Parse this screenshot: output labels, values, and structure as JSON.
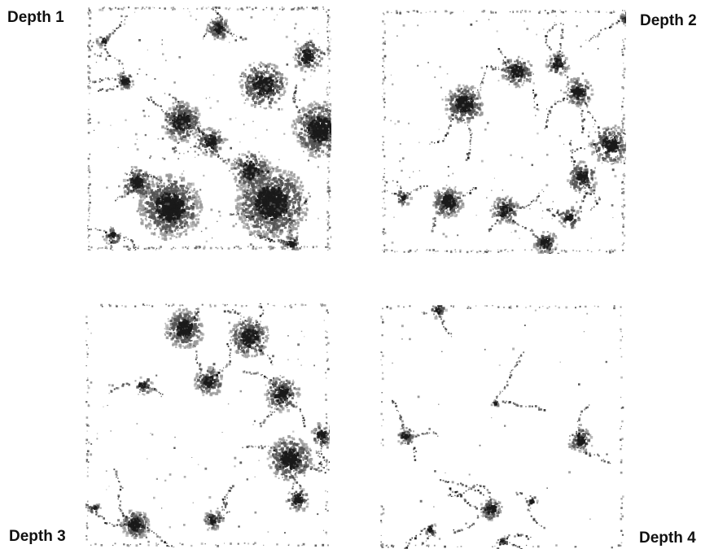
{
  "figure": {
    "panels": [
      {
        "label": "Depth 1",
        "density": "high",
        "icon": "texture-image"
      },
      {
        "label": "Depth 2",
        "density": "medium",
        "icon": "texture-image"
      },
      {
        "label": "Depth 3",
        "density": "medium",
        "icon": "texture-image"
      },
      {
        "label": "Depth 4",
        "density": "low",
        "icon": "texture-image"
      }
    ],
    "colors": {
      "background": "#ffffff",
      "ink_dark": "#1a1a1a",
      "ink_mid": "#555555",
      "ink_light": "#9a9a9a"
    }
  }
}
